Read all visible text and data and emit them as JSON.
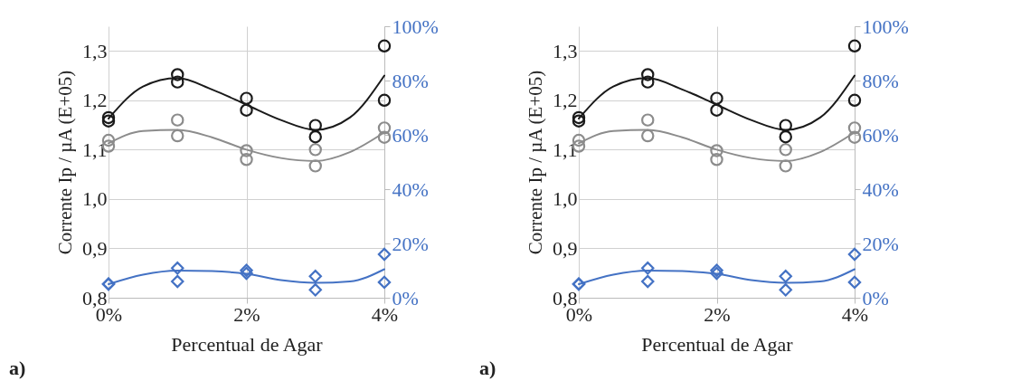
{
  "chart_data": [
    {
      "type": "scatter",
      "xlabel": "Percentual de Agar",
      "ylabel": "Corrente  Ip / µA (E+05)",
      "annotations": [
        "a)"
      ],
      "xlim": [
        0,
        4
      ],
      "xticks": [
        {
          "value": 0,
          "label": "0%"
        },
        {
          "value": 2,
          "label": "2%"
        },
        {
          "value": 4,
          "label": "4%"
        }
      ],
      "ylim": [
        0.8,
        1.35
      ],
      "yticks": [
        {
          "value": 0.8,
          "label": "0,8"
        },
        {
          "value": 0.9,
          "label": "0,9"
        },
        {
          "value": 1.0,
          "label": "1,0"
        },
        {
          "value": 1.1,
          "label": "1,1"
        },
        {
          "value": 1.2,
          "label": "1,2"
        },
        {
          "value": 1.3,
          "label": "1,3"
        }
      ],
      "y2lim": [
        0,
        100
      ],
      "y2ticks": [
        {
          "value": 0,
          "label": "0%"
        },
        {
          "value": 20,
          "label": "20%"
        },
        {
          "value": 40,
          "label": "40%"
        },
        {
          "value": 60,
          "label": "60%"
        },
        {
          "value": 80,
          "label": "80%"
        },
        {
          "value": 100,
          "label": "100%"
        }
      ],
      "grid": true,
      "legend": false,
      "series": [
        {
          "type": "line",
          "color": "#1a1a1a",
          "marker": "none",
          "x": [
            0,
            0.5,
            1,
            1.5,
            2,
            2.5,
            3,
            3.5,
            4
          ],
          "values": [
            1.163,
            1.228,
            1.245,
            1.222,
            1.191,
            1.16,
            1.14,
            1.165,
            1.25
          ]
        },
        {
          "type": "line",
          "color": "#8c8c8c",
          "marker": "none",
          "x": [
            0,
            0.5,
            1,
            1.5,
            2,
            2.5,
            3,
            3.5,
            4
          ],
          "values": [
            1.113,
            1.138,
            1.14,
            1.125,
            1.1,
            1.083,
            1.077,
            1.095,
            1.135
          ]
        },
        {
          "type": "line",
          "color": "#4472c4",
          "marker": "none",
          "axis": "y2",
          "x": [
            0,
            0.5,
            1,
            1.5,
            2,
            2.5,
            3,
            3.5,
            4
          ],
          "values": [
            5,
            8.5,
            10,
            9.8,
            8.8,
            6.5,
            5.5,
            6,
            10.5
          ]
        },
        {
          "type": "scatter",
          "color": "#8c8c8c",
          "marker": "circle",
          "x": [
            0,
            0,
            1,
            1,
            2,
            2,
            3,
            3,
            4,
            4
          ],
          "values": [
            1.119,
            1.107,
            1.16,
            1.128,
            1.098,
            1.08,
            1.1,
            1.067,
            1.144,
            1.125
          ]
        },
        {
          "type": "scatter",
          "color": "#1a1a1a",
          "marker": "circle",
          "x": [
            0,
            0,
            1,
            1,
            2,
            2,
            3,
            3,
            4,
            4
          ],
          "values": [
            1.165,
            1.158,
            1.252,
            1.237,
            1.204,
            1.18,
            1.149,
            1.126,
            1.31,
            1.2
          ]
        },
        {
          "type": "scatter",
          "color": "#4472c4",
          "marker": "diamond",
          "axis": "y2",
          "x": [
            0,
            0,
            1,
            1,
            2,
            2,
            3,
            3,
            4,
            4
          ],
          "values": [
            5.1,
            5,
            10.9,
            6,
            10.1,
            9,
            7.9,
            2.9,
            16,
            5.7
          ]
        }
      ]
    },
    {
      "type": "scatter",
      "xlabel": "Percentual de Agar",
      "ylabel": "Corrente  Ip / µA (E+05)",
      "annotations": [
        "a)"
      ],
      "xlim": [
        0,
        4
      ],
      "xticks": [
        {
          "value": 0,
          "label": "0%"
        },
        {
          "value": 2,
          "label": "2%"
        },
        {
          "value": 4,
          "label": "4%"
        }
      ],
      "ylim": [
        0.8,
        1.35
      ],
      "yticks": [
        {
          "value": 0.8,
          "label": "0,8"
        },
        {
          "value": 0.9,
          "label": "0,9"
        },
        {
          "value": 1.0,
          "label": "1,0"
        },
        {
          "value": 1.1,
          "label": "1,1"
        },
        {
          "value": 1.2,
          "label": "1,2"
        },
        {
          "value": 1.3,
          "label": "1,3"
        }
      ],
      "y2lim": [
        0,
        100
      ],
      "y2ticks": [
        {
          "value": 0,
          "label": "0%"
        },
        {
          "value": 20,
          "label": "20%"
        },
        {
          "value": 40,
          "label": "40%"
        },
        {
          "value": 60,
          "label": "60%"
        },
        {
          "value": 80,
          "label": "80%"
        },
        {
          "value": 100,
          "label": "100%"
        }
      ],
      "grid": true,
      "legend": false,
      "series": [
        {
          "type": "line",
          "color": "#1a1a1a",
          "marker": "none",
          "x": [
            0,
            0.5,
            1,
            1.5,
            2,
            2.5,
            3,
            3.5,
            4
          ],
          "values": [
            1.163,
            1.228,
            1.245,
            1.222,
            1.191,
            1.16,
            1.14,
            1.165,
            1.25
          ]
        },
        {
          "type": "line",
          "color": "#8c8c8c",
          "marker": "none",
          "x": [
            0,
            0.5,
            1,
            1.5,
            2,
            2.5,
            3,
            3.5,
            4
          ],
          "values": [
            1.113,
            1.138,
            1.14,
            1.125,
            1.1,
            1.083,
            1.077,
            1.095,
            1.135
          ]
        },
        {
          "type": "line",
          "color": "#4472c4",
          "marker": "none",
          "axis": "y2",
          "x": [
            0,
            0.5,
            1,
            1.5,
            2,
            2.5,
            3,
            3.5,
            4
          ],
          "values": [
            5,
            8.5,
            10,
            9.8,
            8.8,
            6.5,
            5.5,
            6,
            10.5
          ]
        },
        {
          "type": "scatter",
          "color": "#8c8c8c",
          "marker": "circle",
          "x": [
            0,
            0,
            1,
            1,
            2,
            2,
            3,
            3,
            4,
            4
          ],
          "values": [
            1.119,
            1.107,
            1.16,
            1.128,
            1.098,
            1.08,
            1.1,
            1.067,
            1.144,
            1.125
          ]
        },
        {
          "type": "scatter",
          "color": "#1a1a1a",
          "marker": "circle",
          "x": [
            0,
            0,
            1,
            1,
            2,
            2,
            3,
            3,
            4,
            4
          ],
          "values": [
            1.165,
            1.158,
            1.252,
            1.237,
            1.204,
            1.18,
            1.149,
            1.126,
            1.31,
            1.2
          ]
        },
        {
          "type": "scatter",
          "color": "#4472c4",
          "marker": "diamond",
          "axis": "y2",
          "x": [
            0,
            0,
            1,
            1,
            2,
            2,
            3,
            3,
            4,
            4
          ],
          "values": [
            5.1,
            5,
            10.9,
            6,
            10.1,
            9,
            7.9,
            2.9,
            16,
            5.7
          ]
        }
      ]
    }
  ]
}
